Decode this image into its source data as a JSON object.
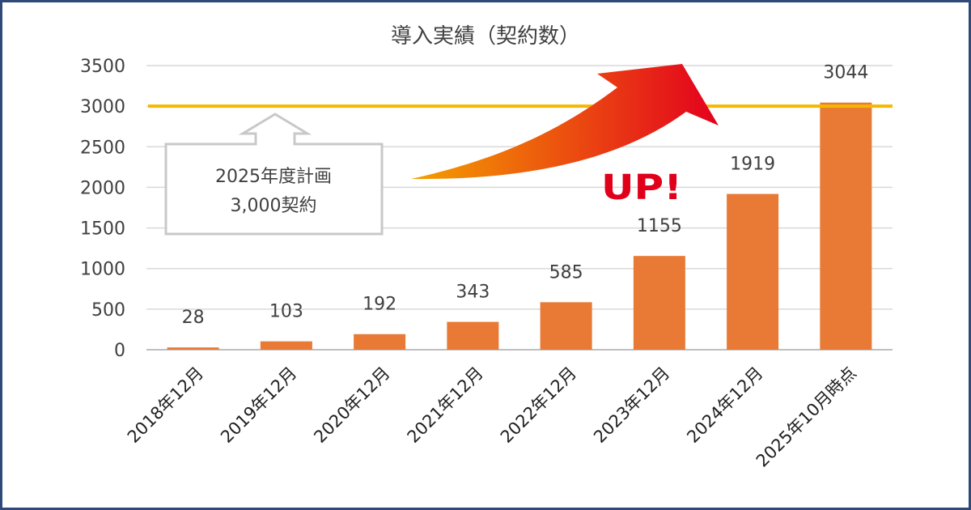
{
  "chart_data": {
    "type": "bar",
    "title": "導入実績（契約数）",
    "categories": [
      "2018年12月",
      "2019年12月",
      "2020年12月",
      "2021年12月",
      "2022年12月",
      "2023年12月",
      "2024年12月",
      "2025年10月時点"
    ],
    "values": [
      28,
      103,
      192,
      343,
      585,
      1155,
      1919,
      3044
    ],
    "data_labels": [
      "28",
      "103",
      "192",
      "343",
      "585",
      "1155",
      "1919",
      "3044"
    ],
    "y_ticks": [
      "0",
      "500",
      "1000",
      "1500",
      "2000",
      "2500",
      "3000",
      "3500"
    ],
    "ylim": [
      0,
      3500
    ],
    "grid": true,
    "target_line": {
      "value": 3000
    },
    "callout": {
      "line1": "2025年度計画",
      "line2": "3,000契約"
    },
    "up_text": "UP!",
    "colors": {
      "bar": "#e87a35",
      "target_line": "#f5b800",
      "up_text": "#e0001a",
      "arrow_start": "#f4a000",
      "arrow_end": "#e3001e",
      "frame": "#2f4a78",
      "grid": "#d9d9d9"
    }
  }
}
